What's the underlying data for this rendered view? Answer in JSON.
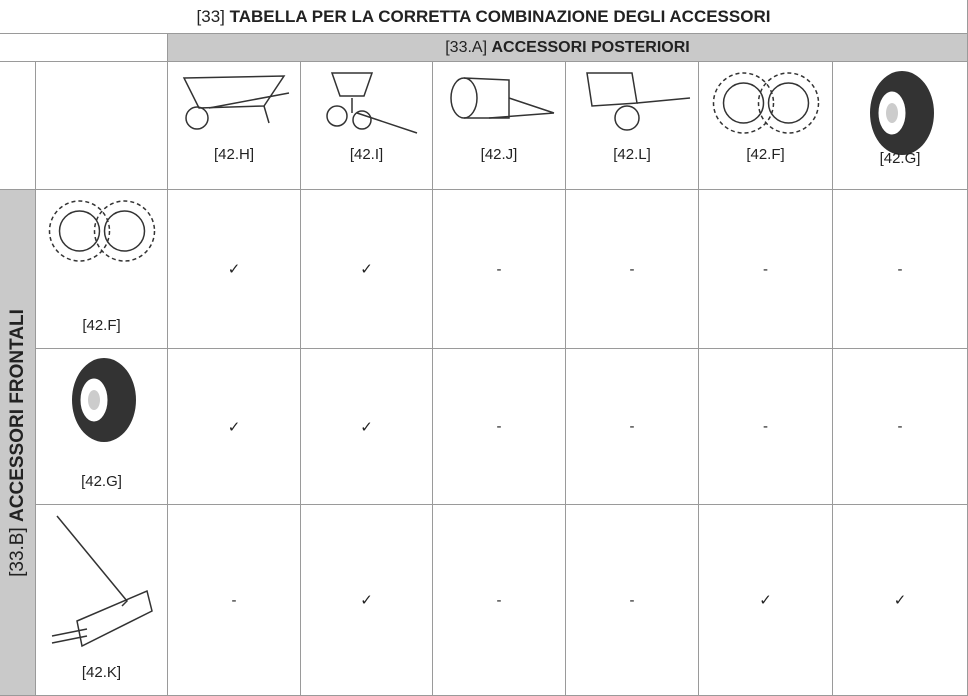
{
  "title": {
    "ref": "[33]",
    "text": "TABELLA PER LA CORRETTA COMBINAZIONE DEGLI ACCESSORI"
  },
  "rear_header": {
    "ref": "[33.A]",
    "text": "ACCESSORI POSTERIORI"
  },
  "front_header": {
    "ref": "[33.B]",
    "text": "ACCESSORI FRONTALI"
  },
  "columns": [
    "[42.H]",
    "[42.I]",
    "[42.J]",
    "[42.L]",
    "[42.F]",
    "[42.G]"
  ],
  "rows": [
    {
      "label": "[42.F]",
      "cells": [
        "✓",
        "✓",
        "-",
        "-",
        "-",
        "-"
      ]
    },
    {
      "label": "[42.G]",
      "cells": [
        "✓",
        "✓",
        "-",
        "-",
        "-",
        "-"
      ]
    },
    {
      "label": "[42.K]",
      "cells": [
        "-",
        "✓",
        "-",
        "-",
        "✓",
        "✓"
      ]
    }
  ]
}
